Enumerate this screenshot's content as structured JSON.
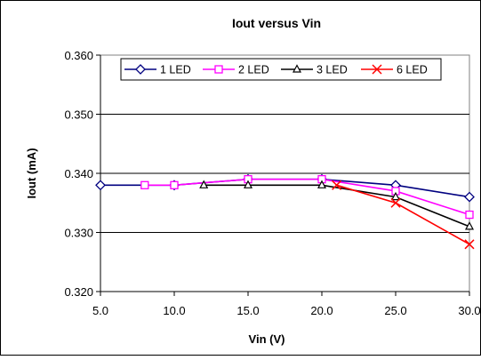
{
  "chart_data": {
    "type": "line",
    "title": "Iout versus Vin",
    "xlabel": "Vin (V)",
    "ylabel": "Iout (mA)",
    "xlim": [
      5.0,
      30.0
    ],
    "ylim": [
      0.32,
      0.36
    ],
    "x_ticks": [
      5.0,
      10.0,
      15.0,
      20.0,
      25.0,
      30.0
    ],
    "x_tick_labels": [
      "5.0",
      "10.0",
      "15.0",
      "20.0",
      "25.0",
      "30.0"
    ],
    "y_ticks": [
      0.32,
      0.33,
      0.34,
      0.35,
      0.36
    ],
    "y_tick_labels": [
      "0.320",
      "0.330",
      "0.340",
      "0.350",
      "0.360"
    ],
    "grid": "horizontal",
    "legend_position": "top",
    "series": [
      {
        "name": "1 LED",
        "color": "#000080",
        "marker": "diamond",
        "x": [
          5,
          10,
          15,
          20,
          25,
          30
        ],
        "y": [
          0.338,
          0.338,
          0.339,
          0.339,
          0.338,
          0.336
        ]
      },
      {
        "name": "2 LED",
        "color": "#ff00ff",
        "marker": "square",
        "x": [
          8,
          10,
          15,
          20,
          25,
          30
        ],
        "y": [
          0.338,
          0.338,
          0.339,
          0.339,
          0.337,
          0.333
        ]
      },
      {
        "name": "3 LED",
        "color": "#000000",
        "marker": "triangle",
        "x": [
          12,
          15,
          20,
          25,
          30
        ],
        "y": [
          0.338,
          0.338,
          0.338,
          0.336,
          0.331
        ]
      },
      {
        "name": "6 LED",
        "color": "#ff0000",
        "marker": "x",
        "x": [
          21,
          25,
          30
        ],
        "y": [
          0.338,
          0.335,
          0.328
        ]
      }
    ]
  }
}
